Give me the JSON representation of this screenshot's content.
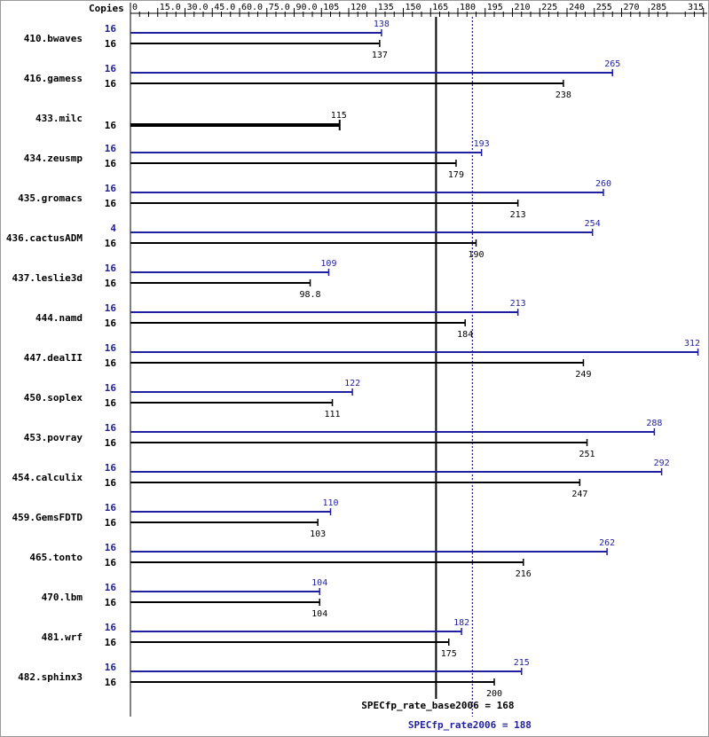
{
  "chart_data": {
    "type": "bar",
    "orientation": "horizontal",
    "copies_label": "Copies",
    "xticks": [
      "0",
      "15.0",
      "30.0",
      "45.0",
      "60.0",
      "75.0",
      "90.0",
      "105",
      "120",
      "135",
      "150",
      "165",
      "180",
      "195",
      "210",
      "225",
      "240",
      "255",
      "270",
      "285",
      "315"
    ],
    "xlim": [
      0,
      318
    ],
    "benchmarks": [
      {
        "name": "410.bwaves",
        "peak_copies": "16",
        "peak": 138,
        "base_copies": "16",
        "base": 137
      },
      {
        "name": "416.gamess",
        "peak_copies": "16",
        "peak": 265,
        "base_copies": "16",
        "base": 238
      },
      {
        "name": "433.milc",
        "peak_copies": "",
        "peak": null,
        "base_copies": "16",
        "base": 115
      },
      {
        "name": "434.zeusmp",
        "peak_copies": "16",
        "peak": 193,
        "base_copies": "16",
        "base": 179
      },
      {
        "name": "435.gromacs",
        "peak_copies": "16",
        "peak": 260,
        "base_copies": "16",
        "base": 213
      },
      {
        "name": "436.cactusADM",
        "peak_copies": "4",
        "peak": 254,
        "base_copies": "16",
        "base": 190
      },
      {
        "name": "437.leslie3d",
        "peak_copies": "16",
        "peak": 109,
        "base_copies": "16",
        "base": 98.8
      },
      {
        "name": "444.namd",
        "peak_copies": "16",
        "peak": 213,
        "base_copies": "16",
        "base": 184
      },
      {
        "name": "447.dealII",
        "peak_copies": "16",
        "peak": 312,
        "base_copies": "16",
        "base": 249
      },
      {
        "name": "450.soplex",
        "peak_copies": "16",
        "peak": 122,
        "base_copies": "16",
        "base": 111
      },
      {
        "name": "453.povray",
        "peak_copies": "16",
        "peak": 288,
        "base_copies": "16",
        "base": 251
      },
      {
        "name": "454.calculix",
        "peak_copies": "16",
        "peak": 292,
        "base_copies": "16",
        "base": 247
      },
      {
        "name": "459.GemsFDTD",
        "peak_copies": "16",
        "peak": 110,
        "base_copies": "16",
        "base": 103
      },
      {
        "name": "465.tonto",
        "peak_copies": "16",
        "peak": 262,
        "base_copies": "16",
        "base": 216
      },
      {
        "name": "470.lbm",
        "peak_copies": "16",
        "peak": 104,
        "base_copies": "16",
        "base": 104
      },
      {
        "name": "481.wrf",
        "peak_copies": "16",
        "peak": 182,
        "base_copies": "16",
        "base": 175
      },
      {
        "name": "482.sphinx3",
        "peak_copies": "16",
        "peak": 215,
        "base_copies": "16",
        "base": 200
      }
    ],
    "base_summary": {
      "label": "SPECfp_rate_base2006 = 168",
      "value": 168
    },
    "peak_summary": {
      "label": "SPECfp_rate2006 = 188",
      "value": 188
    },
    "colors": {
      "base": "#000000",
      "peak": "#1f1fa0",
      "frame": "#999999"
    }
  }
}
